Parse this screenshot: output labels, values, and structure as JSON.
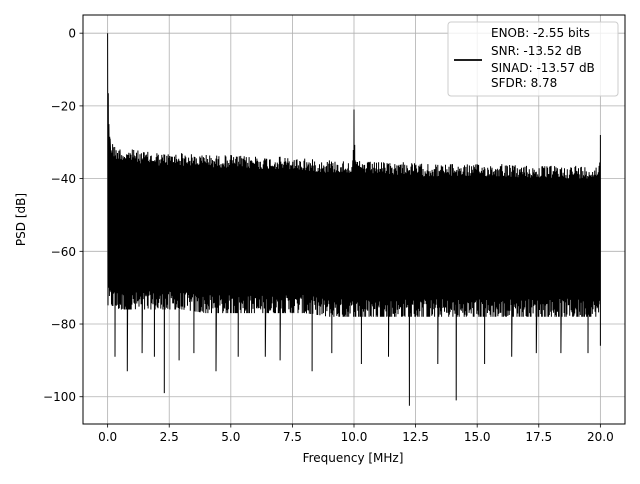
{
  "chart_data": {
    "type": "line",
    "title": "",
    "xlabel": "Frequency [MHz]",
    "ylabel": "PSD [dB]",
    "xlim": [
      -1.0,
      21.0
    ],
    "ylim": [
      -107.5,
      5.0
    ],
    "grid": true,
    "x_ticks": [
      0.0,
      2.5,
      5.0,
      7.5,
      10.0,
      12.5,
      15.0,
      17.5,
      20.0
    ],
    "x_tick_labels": [
      "0.0",
      "2.5",
      "5.0",
      "7.5",
      "10.0",
      "12.5",
      "15.0",
      "17.5",
      "20.0"
    ],
    "y_ticks": [
      0,
      -20,
      -40,
      -60,
      -80,
      -100
    ],
    "y_tick_labels": [
      "0",
      "−20",
      "−40",
      "−60",
      "−80",
      "−100"
    ],
    "legend": {
      "placement": "top-right",
      "entries": [
        "ENOB: -2.55 bits",
        "SNR: -13.52 dB",
        "SINAD: -13.57 dB",
        "SFDR: 8.78"
      ]
    },
    "series": [
      {
        "color": "#000000",
        "upper_envelope": {
          "x": [
            0.0,
            0.05,
            0.1,
            0.2,
            0.5,
            1.0,
            2.0,
            3.0,
            4.0,
            5.0,
            6.0,
            7.0,
            8.0,
            9.0,
            9.95,
            10.0,
            10.05,
            11.0,
            12.0,
            13.0,
            14.0,
            15.0,
            16.0,
            17.0,
            18.0,
            19.0,
            19.95,
            20.0
          ],
          "y": [
            0.0,
            -25.0,
            -29.0,
            -30.5,
            -32.0,
            -32.0,
            -33.0,
            -33.0,
            -33.5,
            -33.5,
            -34.0,
            -34.0,
            -34.5,
            -35.0,
            -35.0,
            -21.0,
            -35.0,
            -35.5,
            -35.5,
            -36.0,
            -36.0,
            -36.0,
            -36.0,
            -36.5,
            -36.5,
            -36.5,
            -36.5,
            -28.0
          ]
        },
        "lower_envelope": {
          "x": [
            0.0,
            0.2,
            0.5,
            1.0,
            2.0,
            3.0,
            4.0,
            5.0,
            6.0,
            7.0,
            8.0,
            9.0,
            10.0,
            11.0,
            12.0,
            13.0,
            14.0,
            15.0,
            16.0,
            17.0,
            18.0,
            19.0,
            20.0
          ],
          "y": [
            -75.0,
            -75.0,
            -76.0,
            -76.0,
            -76.0,
            -76.0,
            -77.0,
            -77.0,
            -77.0,
            -77.0,
            -77.0,
            -78.0,
            -78.0,
            -78.0,
            -78.0,
            -78.0,
            -78.0,
            -78.0,
            -78.0,
            -78.0,
            -78.0,
            -78.0,
            -78.0
          ]
        },
        "deep_dips": {
          "x": [
            0.3,
            0.8,
            1.4,
            1.9,
            2.3,
            2.9,
            3.5,
            4.4,
            5.3,
            6.4,
            7.0,
            8.3,
            9.1,
            10.3,
            11.4,
            12.25,
            13.4,
            14.15,
            15.3,
            16.4,
            17.4,
            18.4,
            19.5,
            20.0
          ],
          "y": [
            -89.0,
            -93.0,
            -88.0,
            -89.0,
            -99.0,
            -90.0,
            -88.0,
            -93.0,
            -89.0,
            -89.0,
            -90.0,
            -93.0,
            -88.0,
            -91.0,
            -89.0,
            -102.5,
            -91.0,
            -101.0,
            -91.0,
            -89.0,
            -88.0,
            -88.0,
            -88.0,
            -86.0
          ]
        }
      }
    ]
  }
}
